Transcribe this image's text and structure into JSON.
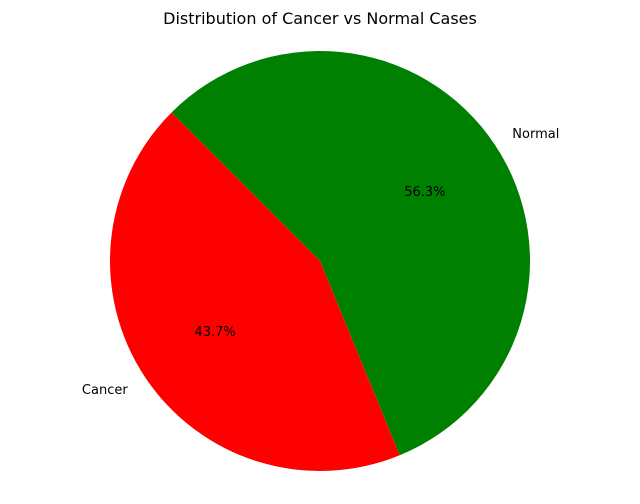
{
  "chart_data": {
    "type": "pie",
    "title": "Distribution of Cancer vs Normal Cases",
    "slices": [
      {
        "label": "Normal",
        "value": 56.3,
        "pct_label": "56.3%",
        "color": "#008000"
      },
      {
        "label": "Cancer",
        "value": 43.7,
        "pct_label": "43.7%",
        "color": "#ff0000"
      }
    ]
  }
}
